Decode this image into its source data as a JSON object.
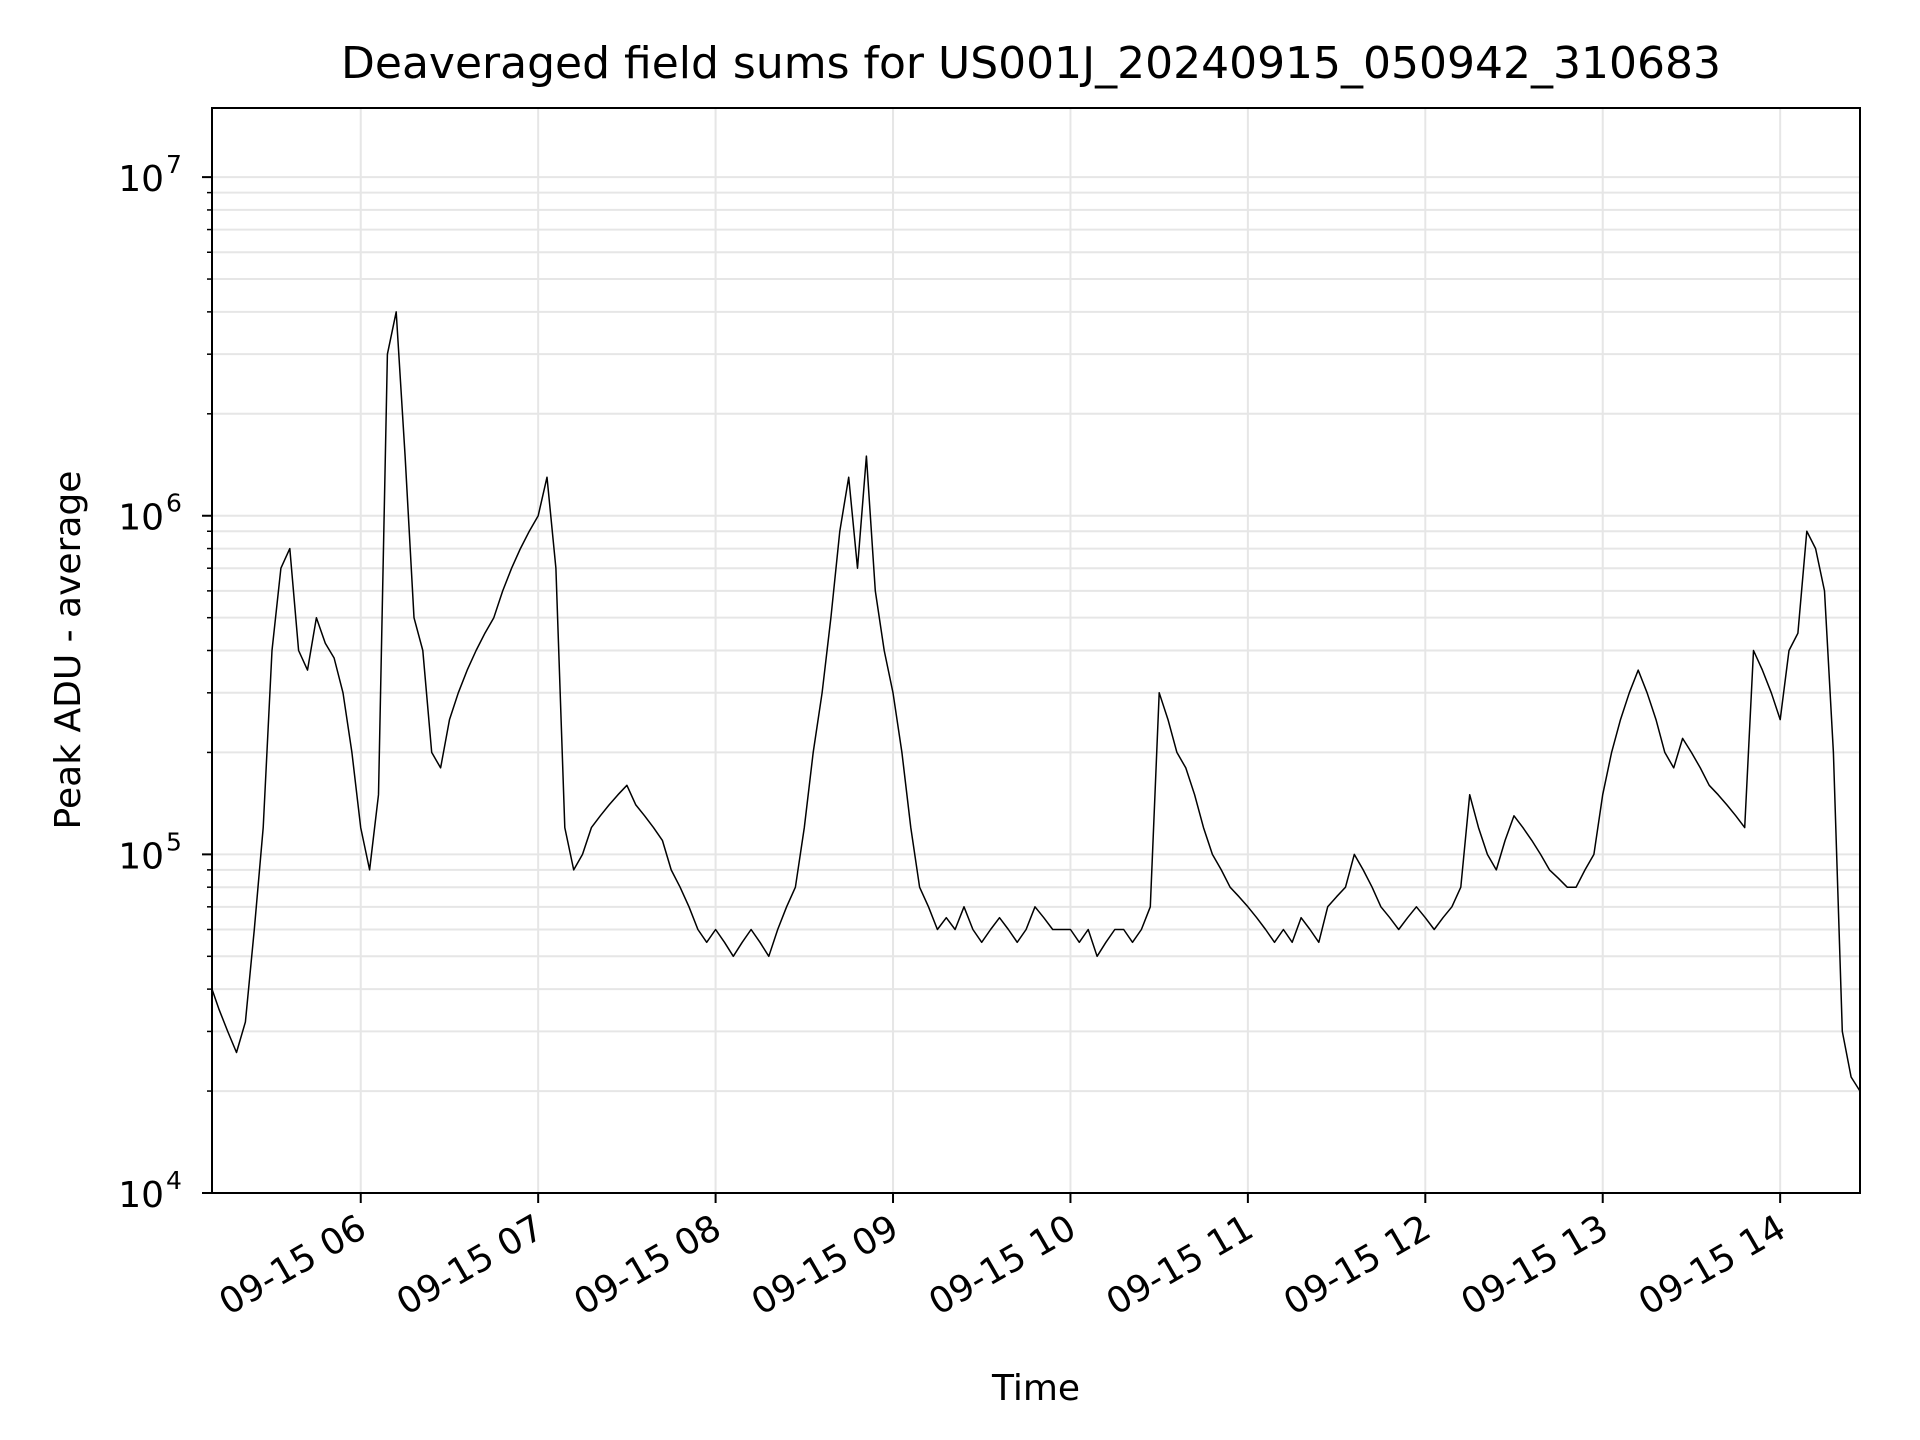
{
  "chart_data": {
    "type": "line",
    "title": "Deaveraged field sums for US001J_20240915_050942_310683",
    "xlabel": "Time",
    "ylabel": "Peak ADU - average",
    "yscale": "log",
    "ylim": [
      10000,
      16000000
    ],
    "xlim": [
      "2024-09-15 05:09:42",
      "2024-09-15 14:27:00"
    ],
    "x_ticks": [
      {
        "time": "2024-09-15 06:00",
        "label": "09-15 06"
      },
      {
        "time": "2024-09-15 07:00",
        "label": "09-15 07"
      },
      {
        "time": "2024-09-15 08:00",
        "label": "09-15 08"
      },
      {
        "time": "2024-09-15 09:00",
        "label": "09-15 09"
      },
      {
        "time": "2024-09-15 10:00",
        "label": "09-15 10"
      },
      {
        "time": "2024-09-15 11:00",
        "label": "09-15 11"
      },
      {
        "time": "2024-09-15 12:00",
        "label": "09-15 12"
      },
      {
        "time": "2024-09-15 13:00",
        "label": "09-15 13"
      },
      {
        "time": "2024-09-15 14:00",
        "label": "09-15 14"
      }
    ],
    "y_ticks": [
      {
        "value": 10000,
        "base": "10",
        "exp": "4"
      },
      {
        "value": 100000,
        "base": "10",
        "exp": "5"
      },
      {
        "value": 1000000,
        "base": "10",
        "exp": "6"
      },
      {
        "value": 10000000,
        "base": "10",
        "exp": "7"
      }
    ],
    "grid": true,
    "line_color": "#000000",
    "series": [
      {
        "x": [
          "2024-09-15 05:09:42",
          "2024-09-15 05:12",
          "2024-09-15 05:15",
          "2024-09-15 05:18",
          "2024-09-15 05:21",
          "2024-09-15 05:24",
          "2024-09-15 05:27",
          "2024-09-15 05:30",
          "2024-09-15 05:33",
          "2024-09-15 05:36",
          "2024-09-15 05:39",
          "2024-09-15 05:42",
          "2024-09-15 05:45",
          "2024-09-15 05:48",
          "2024-09-15 05:51",
          "2024-09-15 05:54",
          "2024-09-15 05:57",
          "2024-09-15 06:00",
          "2024-09-15 06:03",
          "2024-09-15 06:06",
          "2024-09-15 06:09",
          "2024-09-15 06:12",
          "2024-09-15 06:15",
          "2024-09-15 06:18",
          "2024-09-15 06:21",
          "2024-09-15 06:24",
          "2024-09-15 06:27",
          "2024-09-15 06:30",
          "2024-09-15 06:33",
          "2024-09-15 06:36",
          "2024-09-15 06:39",
          "2024-09-15 06:42",
          "2024-09-15 06:45",
          "2024-09-15 06:48",
          "2024-09-15 06:51",
          "2024-09-15 06:54",
          "2024-09-15 06:57",
          "2024-09-15 07:00",
          "2024-09-15 07:03",
          "2024-09-15 07:06",
          "2024-09-15 07:09",
          "2024-09-15 07:12",
          "2024-09-15 07:15",
          "2024-09-15 07:18",
          "2024-09-15 07:21",
          "2024-09-15 07:24",
          "2024-09-15 07:27",
          "2024-09-15 07:30",
          "2024-09-15 07:33",
          "2024-09-15 07:36",
          "2024-09-15 07:39",
          "2024-09-15 07:42",
          "2024-09-15 07:45",
          "2024-09-15 07:48",
          "2024-09-15 07:51",
          "2024-09-15 07:54",
          "2024-09-15 07:57",
          "2024-09-15 08:00",
          "2024-09-15 08:03",
          "2024-09-15 08:06",
          "2024-09-15 08:09",
          "2024-09-15 08:12",
          "2024-09-15 08:15",
          "2024-09-15 08:18",
          "2024-09-15 08:21",
          "2024-09-15 08:24",
          "2024-09-15 08:27",
          "2024-09-15 08:30",
          "2024-09-15 08:33",
          "2024-09-15 08:36",
          "2024-09-15 08:39",
          "2024-09-15 08:42",
          "2024-09-15 08:45",
          "2024-09-15 08:48",
          "2024-09-15 08:51",
          "2024-09-15 08:54",
          "2024-09-15 08:57",
          "2024-09-15 09:00",
          "2024-09-15 09:03",
          "2024-09-15 09:06",
          "2024-09-15 09:09",
          "2024-09-15 09:12",
          "2024-09-15 09:15",
          "2024-09-15 09:18",
          "2024-09-15 09:21",
          "2024-09-15 09:24",
          "2024-09-15 09:27",
          "2024-09-15 09:30",
          "2024-09-15 09:33",
          "2024-09-15 09:36",
          "2024-09-15 09:39",
          "2024-09-15 09:42",
          "2024-09-15 09:45",
          "2024-09-15 09:48",
          "2024-09-15 09:51",
          "2024-09-15 09:54",
          "2024-09-15 09:57",
          "2024-09-15 10:00",
          "2024-09-15 10:03",
          "2024-09-15 10:06",
          "2024-09-15 10:09",
          "2024-09-15 10:12",
          "2024-09-15 10:15",
          "2024-09-15 10:18",
          "2024-09-15 10:21",
          "2024-09-15 10:24",
          "2024-09-15 10:27",
          "2024-09-15 10:30",
          "2024-09-15 10:33",
          "2024-09-15 10:36",
          "2024-09-15 10:39",
          "2024-09-15 10:42",
          "2024-09-15 10:45",
          "2024-09-15 10:48",
          "2024-09-15 10:51",
          "2024-09-15 10:54",
          "2024-09-15 10:57",
          "2024-09-15 11:00",
          "2024-09-15 11:03",
          "2024-09-15 11:06",
          "2024-09-15 11:09",
          "2024-09-15 11:12",
          "2024-09-15 11:15",
          "2024-09-15 11:18",
          "2024-09-15 11:21",
          "2024-09-15 11:24",
          "2024-09-15 11:27",
          "2024-09-15 11:30",
          "2024-09-15 11:33",
          "2024-09-15 11:36",
          "2024-09-15 11:39",
          "2024-09-15 11:42",
          "2024-09-15 11:45",
          "2024-09-15 11:48",
          "2024-09-15 11:51",
          "2024-09-15 11:54",
          "2024-09-15 11:57",
          "2024-09-15 12:00",
          "2024-09-15 12:03",
          "2024-09-15 12:06",
          "2024-09-15 12:09",
          "2024-09-15 12:12",
          "2024-09-15 12:15",
          "2024-09-15 12:18",
          "2024-09-15 12:21",
          "2024-09-15 12:24",
          "2024-09-15 12:27",
          "2024-09-15 12:30",
          "2024-09-15 12:33",
          "2024-09-15 12:36",
          "2024-09-15 12:39",
          "2024-09-15 12:42",
          "2024-09-15 12:45",
          "2024-09-15 12:48",
          "2024-09-15 12:51",
          "2024-09-15 12:54",
          "2024-09-15 12:57",
          "2024-09-15 13:00",
          "2024-09-15 13:03",
          "2024-09-15 13:06",
          "2024-09-15 13:09",
          "2024-09-15 13:12",
          "2024-09-15 13:15",
          "2024-09-15 13:18",
          "2024-09-15 13:21",
          "2024-09-15 13:24",
          "2024-09-15 13:27",
          "2024-09-15 13:30",
          "2024-09-15 13:33",
          "2024-09-15 13:36",
          "2024-09-15 13:39",
          "2024-09-15 13:42",
          "2024-09-15 13:45",
          "2024-09-15 13:48",
          "2024-09-15 13:51",
          "2024-09-15 13:54",
          "2024-09-15 13:57",
          "2024-09-15 14:00",
          "2024-09-15 14:03",
          "2024-09-15 14:06",
          "2024-09-15 14:09",
          "2024-09-15 14:12",
          "2024-09-15 14:15",
          "2024-09-15 14:18",
          "2024-09-15 14:21",
          "2024-09-15 14:24",
          "2024-09-15 14:27"
        ],
        "y": [
          40000,
          35000,
          30000,
          26000,
          32000,
          60000,
          120000,
          400000,
          700000,
          800000,
          400000,
          350000,
          500000,
          420000,
          380000,
          300000,
          200000,
          120000,
          90000,
          150000,
          3000000,
          4000000,
          1500000,
          500000,
          400000,
          200000,
          180000,
          250000,
          300000,
          350000,
          400000,
          450000,
          500000,
          600000,
          700000,
          800000,
          900000,
          1000000,
          1300000,
          700000,
          120000,
          90000,
          100000,
          120000,
          130000,
          140000,
          150000,
          160000,
          140000,
          130000,
          120000,
          110000,
          90000,
          80000,
          70000,
          60000,
          55000,
          60000,
          55000,
          50000,
          55000,
          60000,
          55000,
          50000,
          60000,
          70000,
          80000,
          120000,
          200000,
          300000,
          500000,
          900000,
          1300000,
          700000,
          1500000,
          600000,
          400000,
          300000,
          200000,
          120000,
          80000,
          70000,
          60000,
          65000,
          60000,
          70000,
          60000,
          55000,
          60000,
          65000,
          60000,
          55000,
          60000,
          70000,
          65000,
          60000,
          60000,
          60000,
          55000,
          60000,
          50000,
          55000,
          60000,
          60000,
          55000,
          60000,
          70000,
          300000,
          250000,
          200000,
          180000,
          150000,
          120000,
          100000,
          90000,
          80000,
          75000,
          70000,
          65000,
          60000,
          55000,
          60000,
          55000,
          65000,
          60000,
          55000,
          70000,
          75000,
          80000,
          100000,
          90000,
          80000,
          70000,
          65000,
          60000,
          65000,
          70000,
          65000,
          60000,
          65000,
          70000,
          80000,
          150000,
          120000,
          100000,
          90000,
          110000,
          130000,
          120000,
          110000,
          100000,
          90000,
          85000,
          80000,
          80000,
          90000,
          100000,
          150000,
          200000,
          250000,
          300000,
          350000,
          300000,
          250000,
          200000,
          180000,
          220000,
          200000,
          180000,
          160000,
          150000,
          140000,
          130000,
          120000,
          400000,
          350000,
          300000,
          250000,
          400000,
          450000,
          900000,
          800000,
          600000,
          200000,
          30000,
          22000,
          20000
        ]
      }
    ]
  }
}
